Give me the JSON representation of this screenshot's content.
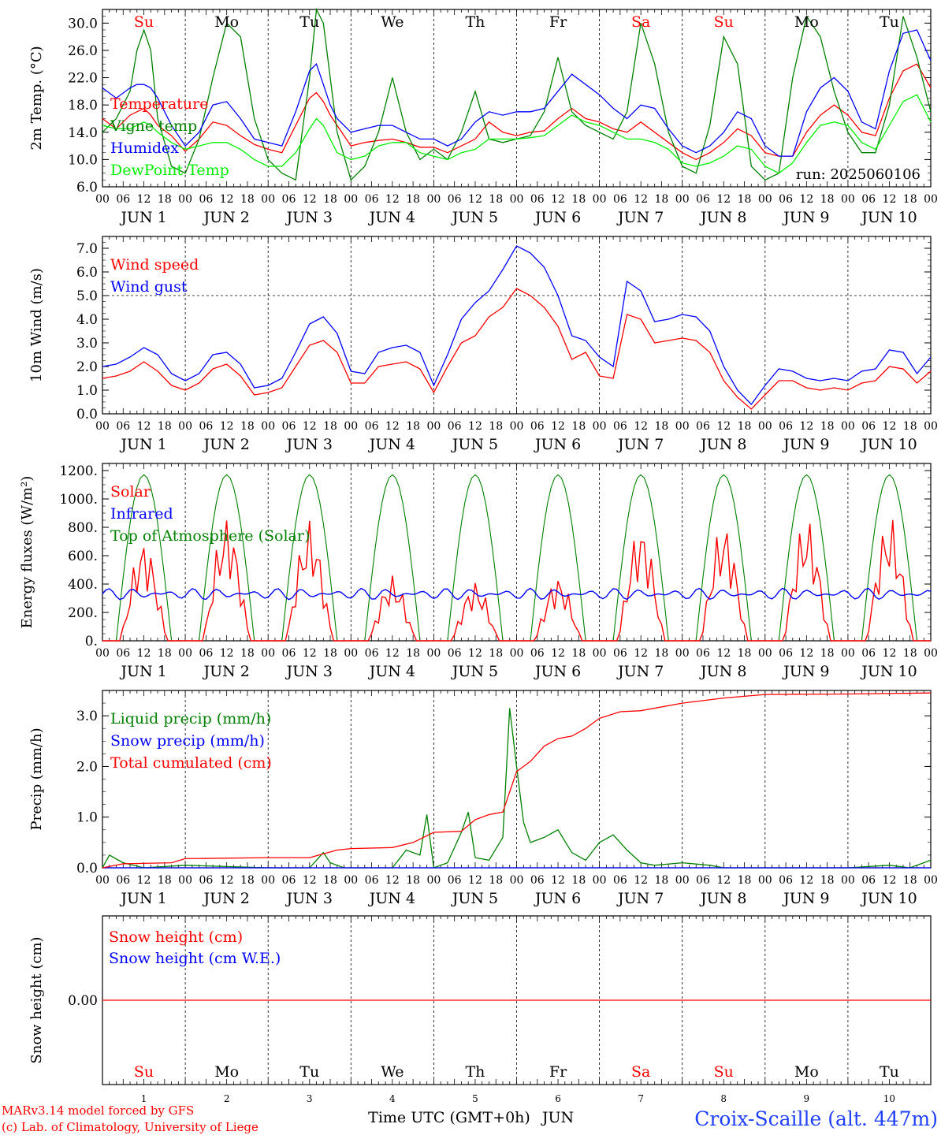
{
  "x_axis": {
    "ticks_per_day": [
      "00",
      "06",
      "12",
      "18"
    ],
    "final_tick": "00",
    "day_labels": [
      "JUN  1",
      "JUN  2",
      "JUN  3",
      "JUN  4",
      "JUN  5",
      "JUN  6",
      "JUN  7",
      "JUN  8",
      "JUN  9",
      "JUN 10"
    ],
    "weekdays": [
      "Su",
      "Mo",
      "Tu",
      "We",
      "Th",
      "Fr",
      "Sa",
      "Su",
      "Mo",
      "Tu"
    ],
    "weekend_flags": [
      true,
      false,
      false,
      false,
      false,
      false,
      true,
      true,
      false,
      false
    ],
    "bottom_numbers": [
      "1",
      "2",
      "3",
      "4",
      "5",
      "6",
      "7",
      "8",
      "9",
      "10"
    ],
    "title": "Time UTC (GMT+0h)",
    "month": "JUN"
  },
  "footer": {
    "credit1": "MARv3.14 model forced by GFS",
    "credit2": "(c) Lab. of Climatology, University of Liege",
    "station": "Croix-Scaille (alt. 447m)"
  },
  "colors": {
    "red": "#ff0000",
    "green": "#008000",
    "blue": "#0000ff",
    "lightgreen": "#00ee00",
    "weekend": "#ff0000",
    "weekday": "#000000"
  },
  "chart_data": [
    {
      "type": "line",
      "ylabel": "2m Temp. (°C)",
      "ylim": [
        6,
        32
      ],
      "ticks": [
        6,
        10,
        14,
        18,
        22,
        26,
        30
      ],
      "tick_labels": [
        "6.0",
        "10.0",
        "14.0",
        "18.0",
        "22.0",
        "26.0",
        "30.0"
      ],
      "annotation": "run: 2025060106",
      "x_hours": [
        0,
        4,
        8,
        10,
        12,
        14,
        16,
        20,
        24,
        28,
        32,
        36,
        40,
        44,
        48,
        52,
        56,
        60,
        62,
        64,
        66,
        68,
        72,
        76,
        80,
        84,
        88,
        92,
        96,
        100,
        104,
        108,
        112,
        116,
        120,
        124,
        128,
        132,
        136,
        140,
        144,
        148,
        152,
        156,
        160,
        164,
        168,
        172,
        176,
        180,
        184,
        188,
        192,
        196,
        200,
        204,
        208,
        212,
        216,
        220,
        224,
        228,
        232,
        236,
        240
      ],
      "series": [
        {
          "name": "Temperature",
          "color": "#ff0000",
          "values": [
            16,
            14.5,
            16.5,
            17,
            17.5,
            16.5,
            15,
            13.5,
            11.2,
            13,
            15.5,
            15,
            13.5,
            12.2,
            11.5,
            11,
            15,
            19,
            19.8,
            18.5,
            16.5,
            15,
            12,
            12.5,
            12.8,
            13,
            12.5,
            11.8,
            11.8,
            11,
            12,
            13,
            15.5,
            14,
            13.5,
            14,
            14.2,
            16,
            17.5,
            16,
            15.5,
            14.5,
            14,
            15.5,
            14,
            12.5,
            11,
            10,
            11,
            12.5,
            14.5,
            13.5,
            11,
            10.5,
            10.5,
            14,
            16.5,
            18,
            16.5,
            14,
            13.5,
            19,
            23,
            24,
            20.5
          ]
        },
        {
          "name": "Vigne temp",
          "color": "#008000",
          "values": [
            14,
            16,
            20,
            26,
            29,
            26,
            16,
            9,
            8,
            13,
            22,
            30,
            28,
            16,
            10,
            8,
            7,
            22,
            32,
            30,
            22,
            14,
            7,
            9,
            14,
            22,
            14,
            10,
            11.5,
            10,
            14,
            20,
            13,
            12.5,
            13,
            13.5,
            17,
            25,
            17,
            15,
            14,
            13,
            17,
            30,
            24,
            14,
            9,
            8,
            15,
            28,
            24,
            9,
            7,
            8,
            22,
            31,
            28,
            20,
            14,
            11,
            11,
            18,
            31,
            25,
            17
          ]
        },
        {
          "name": "Humidex",
          "color": "#0000ff",
          "values": [
            20.5,
            19,
            20.5,
            21,
            21,
            20.5,
            19,
            15,
            12,
            14,
            18,
            18.5,
            16,
            13,
            12.5,
            12,
            17,
            23,
            24,
            21,
            18,
            16,
            14,
            14.5,
            15,
            15,
            14,
            13,
            13,
            12,
            13,
            15.5,
            17,
            16.5,
            17,
            17,
            17.5,
            20,
            22.5,
            21,
            19.5,
            17.5,
            16,
            18,
            17.5,
            14.5,
            12,
            11,
            12,
            14,
            17,
            16,
            12,
            10.5,
            10.5,
            17,
            20.5,
            22,
            20,
            15.5,
            14.5,
            23,
            28.5,
            29,
            24.5
          ]
        },
        {
          "name": "DewPoint Temp",
          "color": "#00ee00",
          "values": [
            15,
            14.5,
            14.5,
            15,
            15.5,
            15,
            14,
            12.5,
            11.5,
            12,
            12.5,
            12.5,
            11.5,
            10,
            9,
            9,
            11,
            14.5,
            16,
            15,
            13,
            11,
            10,
            10.5,
            12,
            12.5,
            12.5,
            11,
            10.5,
            10,
            11,
            11.5,
            13,
            13,
            13,
            13.2,
            13.5,
            15,
            16.5,
            15.5,
            15,
            14,
            13,
            13,
            12.5,
            11.5,
            9.5,
            9,
            9.5,
            10.5,
            12,
            11.5,
            9,
            8,
            9.5,
            12.5,
            15,
            15.5,
            15,
            12.5,
            11.5,
            15,
            18.5,
            19.5,
            15.5
          ]
        }
      ]
    },
    {
      "type": "line",
      "ylabel": "10m Wind (m/s)",
      "ylim": [
        0,
        7.5
      ],
      "ticks": [
        0,
        1,
        2,
        3,
        4,
        5,
        6,
        7
      ],
      "tick_labels": [
        "0.0",
        "1.0",
        "2.0",
        "3.0",
        "4.0",
        "5.0",
        "6.0",
        "7.0"
      ],
      "reference_line": 5,
      "x_hours": [
        0,
        4,
        8,
        12,
        16,
        20,
        24,
        28,
        32,
        36,
        40,
        44,
        48,
        52,
        56,
        60,
        64,
        68,
        72,
        76,
        80,
        84,
        88,
        92,
        96,
        100,
        104,
        108,
        112,
        116,
        120,
        124,
        128,
        132,
        136,
        140,
        144,
        148,
        152,
        156,
        160,
        164,
        168,
        172,
        176,
        180,
        184,
        188,
        192,
        196,
        200,
        204,
        208,
        212,
        216,
        220,
        224,
        228,
        232,
        236,
        240
      ],
      "series": [
        {
          "name": "Wind speed",
          "color": "#ff0000",
          "values": [
            1.5,
            1.6,
            1.8,
            2.2,
            1.8,
            1.2,
            1.0,
            1.3,
            1.9,
            2.1,
            1.6,
            0.8,
            0.9,
            1.1,
            2.0,
            2.9,
            3.1,
            2.6,
            1.3,
            1.3,
            2.0,
            2.1,
            2.2,
            1.9,
            0.9,
            2.0,
            3.0,
            3.3,
            4.1,
            4.5,
            5.3,
            5.0,
            4.5,
            3.7,
            2.3,
            2.6,
            1.6,
            1.5,
            4.2,
            4.0,
            3.0,
            3.1,
            3.2,
            3.1,
            2.6,
            1.4,
            0.7,
            0.2,
            0.8,
            1.4,
            1.4,
            1.1,
            1.0,
            1.1,
            1.0,
            1.3,
            1.4,
            2.0,
            1.9,
            1.3,
            1.8
          ]
        },
        {
          "name": "Wind gust",
          "color": "#0000ff",
          "values": [
            2.0,
            2.1,
            2.4,
            2.8,
            2.5,
            1.7,
            1.4,
            1.7,
            2.5,
            2.6,
            2.1,
            1.1,
            1.2,
            1.5,
            2.6,
            3.8,
            4.1,
            3.4,
            1.8,
            1.7,
            2.6,
            2.8,
            2.9,
            2.6,
            1.2,
            2.5,
            4.0,
            4.7,
            5.2,
            6.1,
            7.1,
            6.8,
            6.2,
            5.0,
            3.3,
            3.1,
            2.4,
            2.0,
            5.6,
            5.2,
            3.9,
            4.0,
            4.2,
            4.1,
            3.5,
            2.0,
            1.0,
            0.4,
            1.2,
            1.9,
            1.8,
            1.5,
            1.4,
            1.5,
            1.4,
            1.8,
            1.9,
            2.7,
            2.6,
            1.7,
            2.4
          ]
        }
      ]
    },
    {
      "type": "line",
      "ylabel": "Energy fluxes (W/m²)",
      "ylim": [
        0,
        1250
      ],
      "ticks": [
        0,
        200,
        400,
        600,
        800,
        1000,
        1200
      ],
      "tick_labels": [
        "0.",
        "200.",
        "400.",
        "600.",
        "800.",
        "1000.",
        "1200."
      ],
      "toa_peak": 1170,
      "toa_daylight_hours": [
        4,
        20
      ],
      "solar_peaks": [
        720,
        880,
        850,
        460,
        420,
        460,
        830,
        840,
        870,
        880
      ],
      "infrared_range": [
        280,
        380
      ],
      "series": [
        {
          "name": "Solar",
          "color": "#ff0000"
        },
        {
          "name": "Infrared",
          "color": "#0000ff"
        },
        {
          "name": "Top of Atmosphere (Solar)",
          "color": "#008000"
        }
      ]
    },
    {
      "type": "line",
      "ylabel": "Precip (mm/h)",
      "ylim": [
        0,
        3.5
      ],
      "ticks": [
        0,
        1,
        2,
        3
      ],
      "tick_labels": [
        "0.0",
        "1.0",
        "2.0",
        "3.0"
      ],
      "series": [
        {
          "name": "Liquid precip (mm/h)",
          "color": "#008000",
          "x_hours": [
            0,
            2,
            6,
            12,
            24,
            48,
            60,
            64,
            66,
            70,
            84,
            88,
            92,
            94,
            96,
            100,
            104,
            106,
            108,
            112,
            116,
            118,
            120,
            122,
            124,
            128,
            132,
            136,
            140,
            144,
            148,
            152,
            156,
            160,
            168,
            176,
            180,
            192,
            216,
            228,
            234,
            240
          ],
          "values": [
            0,
            0.25,
            0.1,
            0,
            0.05,
            0,
            0,
            0.3,
            0.1,
            0,
            0,
            0.35,
            0.25,
            1.05,
            0,
            0.1,
            0.7,
            1.1,
            0.2,
            0.15,
            0.6,
            3.15,
            2.0,
            0.9,
            0.5,
            0.6,
            0.75,
            0.3,
            0.15,
            0.5,
            0.65,
            0.35,
            0.1,
            0.05,
            0.1,
            0.05,
            0,
            0,
            0,
            0.05,
            0,
            0.15
          ]
        },
        {
          "name": "Snow precip (mm/h)",
          "color": "#0000ff",
          "x_hours": [
            0,
            240
          ],
          "values": [
            0,
            0
          ]
        },
        {
          "name": "Total cumulated (cm)",
          "color": "#ff0000",
          "x_hours": [
            0,
            6,
            20,
            24,
            48,
            60,
            68,
            72,
            84,
            90,
            96,
            104,
            108,
            112,
            116,
            120,
            122,
            124,
            128,
            132,
            136,
            140,
            144,
            150,
            156,
            168,
            180,
            192,
            216,
            240
          ],
          "values": [
            0,
            0.08,
            0.1,
            0.18,
            0.2,
            0.2,
            0.35,
            0.38,
            0.4,
            0.5,
            0.7,
            0.72,
            0.95,
            1.05,
            1.1,
            1.9,
            2.0,
            2.1,
            2.4,
            2.55,
            2.6,
            2.75,
            2.95,
            3.08,
            3.1,
            3.25,
            3.35,
            3.42,
            3.43,
            3.45
          ]
        }
      ]
    },
    {
      "type": "line",
      "ylabel": "Snow height (cm)",
      "ylim": [
        -1,
        1
      ],
      "ticks": [
        0
      ],
      "tick_labels": [
        "0.00"
      ],
      "series": [
        {
          "name": "Snow height (cm)",
          "color": "#ff0000",
          "x_hours": [
            0,
            240
          ],
          "values": [
            0,
            0
          ]
        },
        {
          "name": "Snow height (cm W.E.)",
          "color": "#0000ff"
        }
      ]
    }
  ]
}
